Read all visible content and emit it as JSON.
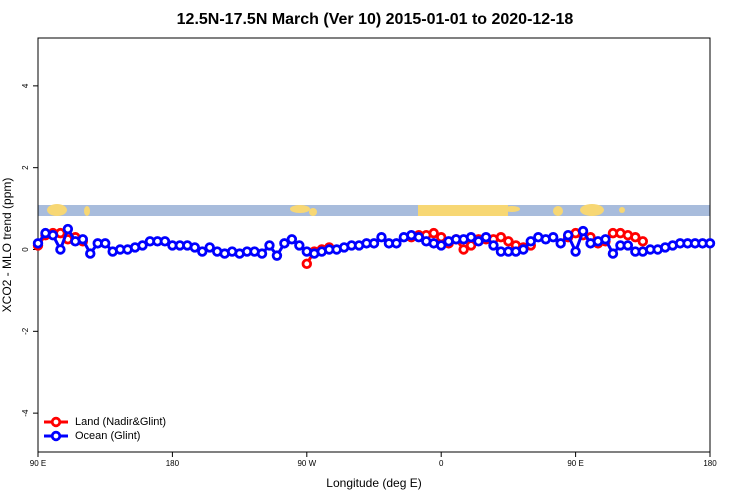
{
  "chart_data": {
    "type": "line",
    "title": "12.5N-17.5N March (Ver 10)   2015-01-01 to 2020-12-18",
    "x_label": "Longitude (deg E)",
    "y_label": "XCO2 - MLO trend (ppm)",
    "xlim": [
      90,
      540
    ],
    "ylim": [
      -4.95,
      5.17
    ],
    "xticks": [
      {
        "value": 90,
        "label": "90 E"
      },
      180,
      {
        "value": 270,
        "label": "90 W"
      },
      {
        "value": 360,
        "label": "0"
      },
      {
        "value": 450,
        "label": "90 E"
      },
      {
        "value": 540,
        "label": "180"
      }
    ],
    "yticks": [
      -4,
      -2,
      0,
      2,
      4
    ],
    "legend": "bottomleft",
    "series": [
      {
        "name": "Land (Nadir&Glint)",
        "color": "#ff0000",
        "x": [
          90,
          95,
          100,
          105,
          110,
          115,
          120,
          125,
          270,
          275,
          280,
          285,
          290,
          340,
          345,
          350,
          355,
          360,
          365,
          370,
          375,
          380,
          385,
          390,
          395,
          400,
          405,
          410,
          415,
          420,
          425,
          445,
          450,
          455,
          460,
          465,
          470,
          475,
          480,
          485,
          490,
          495,
          500
        ],
        "values": [
          0.1,
          0.35,
          0.4,
          0.4,
          0.25,
          0.3,
          0.2,
          null,
          -0.35,
          -0.05,
          0.0,
          0.05,
          null,
          0.3,
          0.35,
          0.35,
          0.4,
          0.3,
          0.15,
          0.25,
          0.0,
          0.1,
          0.25,
          0.25,
          0.25,
          0.3,
          0.2,
          0.1,
          0.05,
          0.1,
          null,
          0.3,
          0.4,
          0.35,
          0.3,
          0.15,
          0.2,
          0.4,
          0.4,
          0.35,
          0.3,
          0.2,
          null
        ]
      },
      {
        "name": "Ocean (Glint)",
        "color": "#0000ff",
        "x": [
          90,
          95,
          100,
          105,
          110,
          115,
          120,
          125,
          130,
          135,
          140,
          145,
          150,
          155,
          160,
          165,
          170,
          175,
          180,
          185,
          190,
          195,
          200,
          205,
          210,
          215,
          220,
          225,
          230,
          235,
          240,
          245,
          250,
          255,
          260,
          265,
          270,
          275,
          280,
          285,
          290,
          295,
          300,
          305,
          310,
          315,
          320,
          325,
          330,
          335,
          340,
          345,
          350,
          355,
          360,
          365,
          370,
          375,
          380,
          385,
          390,
          395,
          400,
          405,
          410,
          415,
          420,
          425,
          430,
          435,
          440,
          445,
          450,
          455,
          460,
          465,
          470,
          475,
          480,
          485,
          490,
          495,
          500,
          505,
          510,
          515,
          520,
          525,
          530,
          535,
          540
        ],
        "values": [
          0.15,
          0.4,
          0.35,
          0.0,
          0.5,
          0.2,
          0.25,
          -0.1,
          0.15,
          0.15,
          -0.05,
          0.0,
          0.0,
          0.05,
          0.1,
          0.2,
          0.2,
          0.2,
          0.1,
          0.1,
          0.1,
          0.05,
          -0.05,
          0.05,
          -0.05,
          -0.1,
          -0.05,
          -0.1,
          -0.05,
          -0.05,
          -0.1,
          0.1,
          -0.15,
          0.15,
          0.25,
          0.1,
          -0.05,
          -0.1,
          -0.05,
          0.0,
          0.0,
          0.05,
          0.1,
          0.1,
          0.15,
          0.15,
          0.3,
          0.15,
          0.15,
          0.3,
          0.35,
          0.3,
          0.2,
          0.15,
          0.1,
          0.2,
          0.25,
          0.25,
          0.3,
          0.2,
          0.3,
          0.1,
          -0.05,
          -0.05,
          -0.05,
          0.0,
          0.2,
          0.3,
          0.25,
          0.3,
          0.15,
          0.35,
          -0.05,
          0.45,
          0.15,
          0.2,
          0.25,
          -0.1,
          0.1,
          0.1,
          -0.05,
          -0.05,
          0.0,
          0.0,
          0.05,
          0.1,
          0.15,
          0.15,
          0.15,
          0.15,
          0.15
        ]
      }
    ]
  }
}
